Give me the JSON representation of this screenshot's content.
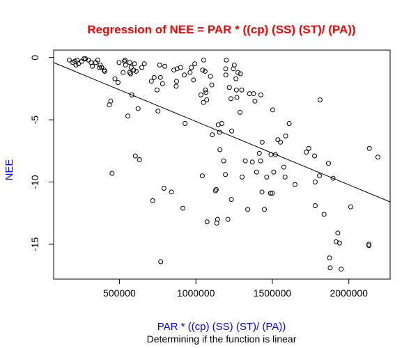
{
  "chart_data": {
    "type": "scatter",
    "title": "Regression of NEE = PAR * ((cp) (SS) (ST)/ (PA))",
    "xlabel": "PAR * ((cp) (SS) (ST)/ (PA))",
    "ylabel": "NEE",
    "subtitle": "Determining if the function is linear",
    "colors": {
      "title": "#ff0000",
      "axis_labels": "#0000ff",
      "points": "#000000",
      "line": "#000000"
    },
    "xlim": [
      70000,
      2270000
    ],
    "ylim": [
      -17.8,
      0.6
    ],
    "x_ticks": [
      500000,
      1000000,
      1500000,
      2000000
    ],
    "x_tick_labels": [
      "500000",
      "1000000",
      "1500000",
      "2000000"
    ],
    "y_ticks": [
      0,
      -5,
      -10,
      -15
    ],
    "y_tick_labels": [
      "0",
      "-5",
      "-10",
      "-15"
    ],
    "regression_line": {
      "x1": 70000,
      "y1": -0.4,
      "x2": 2270000,
      "y2": -11.6
    },
    "x": [
      172000,
      196000,
      209000,
      216000,
      223000,
      232000,
      254000,
      268000,
      278000,
      298000,
      315000,
      324000,
      345000,
      358000,
      369000,
      374000,
      384000,
      400000,
      404000,
      434000,
      443000,
      452000,
      471000,
      491000,
      498000,
      524000,
      533000,
      537000,
      540000,
      555000,
      567000,
      568000,
      573000,
      577000,
      581000,
      593000,
      599000,
      604000,
      609000,
      622000,
      631000,
      646000,
      663000,
      709000,
      718000,
      727000,
      746000,
      752000,
      763000,
      768000,
      770000,
      782000,
      791000,
      797000,
      840000,
      856000,
      871000,
      874000,
      877000,
      900000,
      915000,
      924000,
      929000,
      962000,
      970000,
      985000,
      993000,
      1033000,
      1042000,
      1044000,
      1049000,
      1051000,
      1060000,
      1062000,
      1066000,
      1071000,
      1073000,
      1095000,
      1104000,
      1107000,
      1128000,
      1133000,
      1137000,
      1142000,
      1146000,
      1155000,
      1157000,
      1170000,
      1182000,
      1193000,
      1195000,
      1196000,
      1199000,
      1209000,
      1219000,
      1229000,
      1232000,
      1234000,
      1245000,
      1251000,
      1262000,
      1265000,
      1268000,
      1275000,
      1289000,
      1291000,
      1300000,
      1302000,
      1323000,
      1339000,
      1351000,
      1369000,
      1377000,
      1386000,
      1397000,
      1415000,
      1423000,
      1425000,
      1432000,
      1433000,
      1448000,
      1463000,
      1488000,
      1491000,
      1499000,
      1502000,
      1509000,
      1520000,
      1536000,
      1553000,
      1575000,
      1583000,
      1587000,
      1610000,
      1648000,
      1722000,
      1738000,
      1776000,
      1780000,
      1780000,
      1808000,
      1812000,
      1838000,
      1867000,
      1874000,
      1878000,
      1897000,
      1917000,
      1928000,
      1939000,
      1950000,
      2012000,
      2131000,
      2131000,
      2134000,
      2190000
    ],
    "y": [
      -0.2,
      -0.4,
      -0.3,
      -0.6,
      -0.2,
      -0.5,
      -0.3,
      -0.1,
      -0.1,
      -0.2,
      -0.4,
      -0.7,
      -0.4,
      -0.2,
      -0.8,
      -0.6,
      -0.8,
      -1.0,
      -1.1,
      -3.8,
      -3.5,
      -9.3,
      -1.7,
      -2.0,
      -0.4,
      -1.2,
      -0.3,
      -0.2,
      -0.6,
      -4.7,
      -1.2,
      -0.4,
      -1.3,
      -0.8,
      -3.0,
      -1.0,
      -0.5,
      -7.9,
      -1.1,
      -4.1,
      -8.2,
      -0.8,
      -0.5,
      -1.9,
      -11.5,
      -1.6,
      -2.6,
      -4.3,
      -0.6,
      -1.6,
      -16.4,
      -2.1,
      -10.5,
      -0.7,
      -10.8,
      -1.0,
      -2.3,
      -1.9,
      -0.9,
      -0.8,
      -12.1,
      -1.4,
      -5.3,
      -1.2,
      -0.8,
      -1.8,
      -0.5,
      -3.0,
      -9.5,
      -1.0,
      -3.6,
      -0.2,
      -1.1,
      -2.6,
      -2.8,
      -3.4,
      -13.2,
      -1.5,
      -2.2,
      -6.2,
      -10.7,
      -10.6,
      -13.3,
      -13.0,
      -5.4,
      -6.0,
      -7.4,
      -5.3,
      -8.3,
      -9.4,
      -0.9,
      -1.4,
      -0.2,
      -13.0,
      -2.4,
      -3.3,
      -11.4,
      -5.9,
      -0.9,
      -0.6,
      -1.7,
      -2.6,
      -3.2,
      -1.2,
      -4.4,
      -1.3,
      -2.6,
      -9.6,
      -8.3,
      -12.2,
      -2.9,
      -8.4,
      -2.9,
      -3.5,
      -9.2,
      -7.7,
      -8.3,
      -3.0,
      -10.8,
      -6.8,
      -12.2,
      -9.6,
      -10.9,
      -7.8,
      -10.9,
      -4.2,
      -9.2,
      -7.8,
      -6.6,
      -6.8,
      -8.8,
      -9.6,
      -6.3,
      -5.3,
      -10.2,
      -7.6,
      -7.3,
      -7.9,
      -11.9,
      -10.0,
      -9.5,
      -3.4,
      -12.6,
      -8.5,
      -16.1,
      -16.9,
      -9.7,
      -14.8,
      -14.1,
      -14.9,
      -17.0,
      -12.0,
      -15.0,
      -15.1,
      -7.3,
      -8.0
    ]
  }
}
